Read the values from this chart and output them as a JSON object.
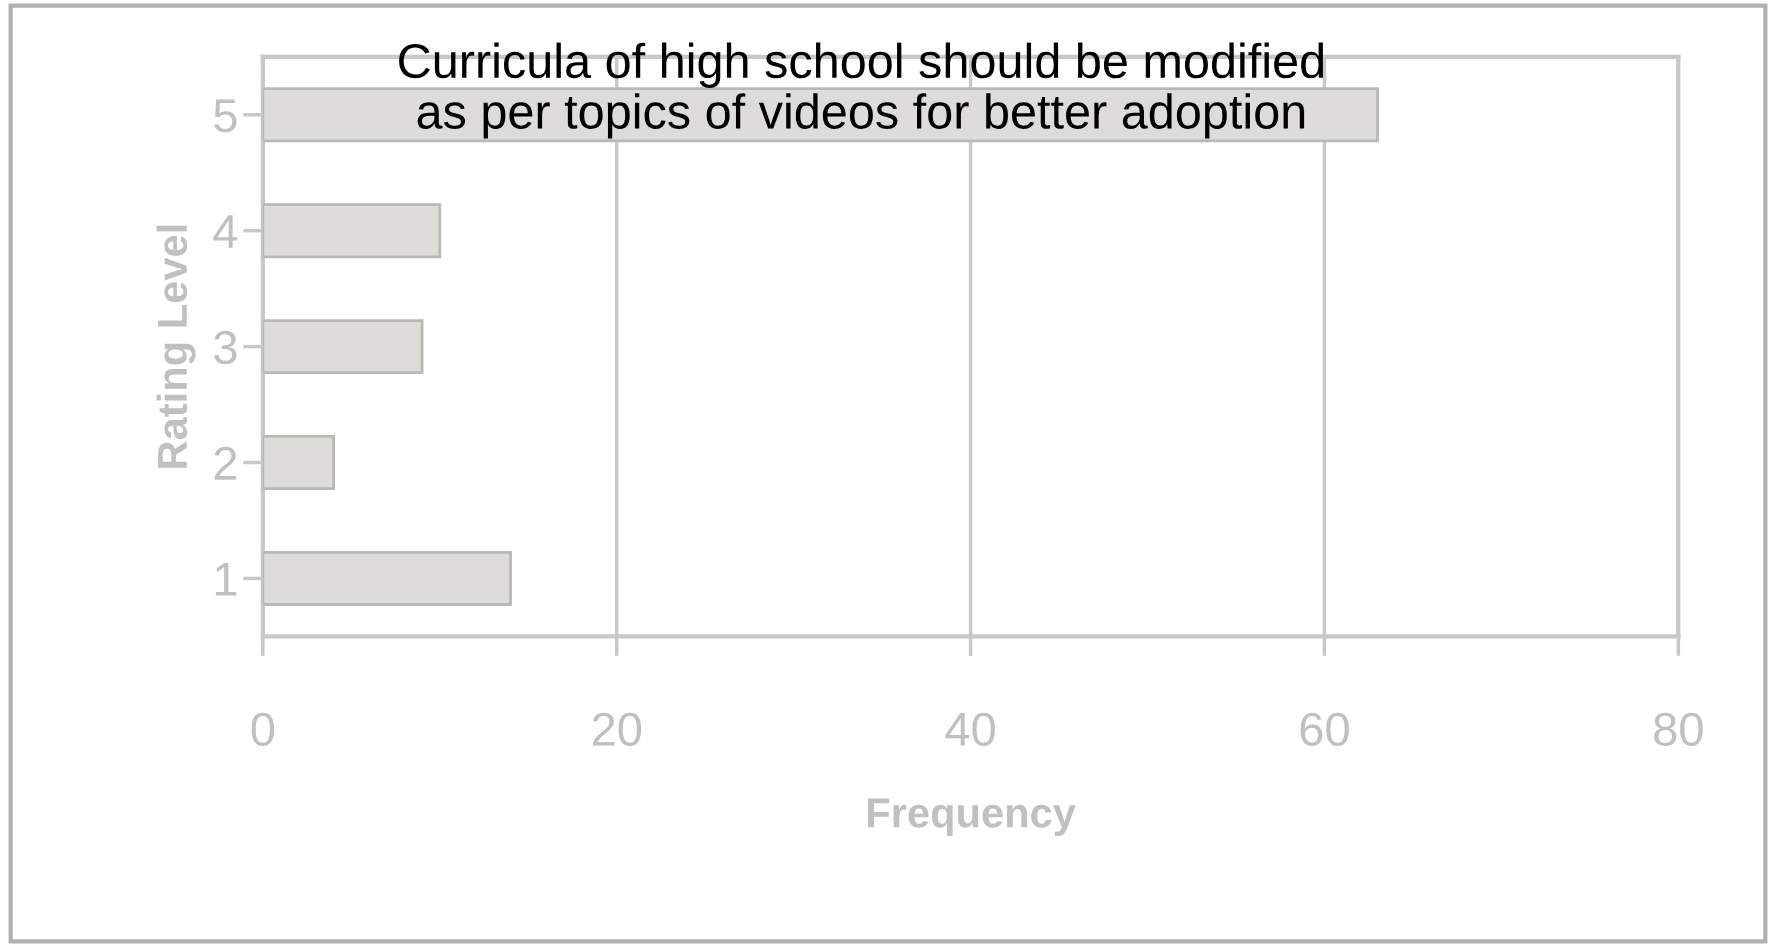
{
  "chart_data": {
    "type": "bar",
    "orientation": "horizontal",
    "title": "Curricula of high school should be modified\nas per topics of videos for better adoption",
    "xlabel": "Frequency",
    "ylabel": "Rating Level",
    "categories": [
      "5",
      "4",
      "3",
      "2",
      "1"
    ],
    "values": [
      63,
      10,
      9,
      4,
      14
    ],
    "color": "#dddcd8",
    "xlim": [
      0,
      80
    ],
    "xticks": [
      0,
      20,
      40,
      60,
      80
    ],
    "grid": "x",
    "legend": false
  }
}
